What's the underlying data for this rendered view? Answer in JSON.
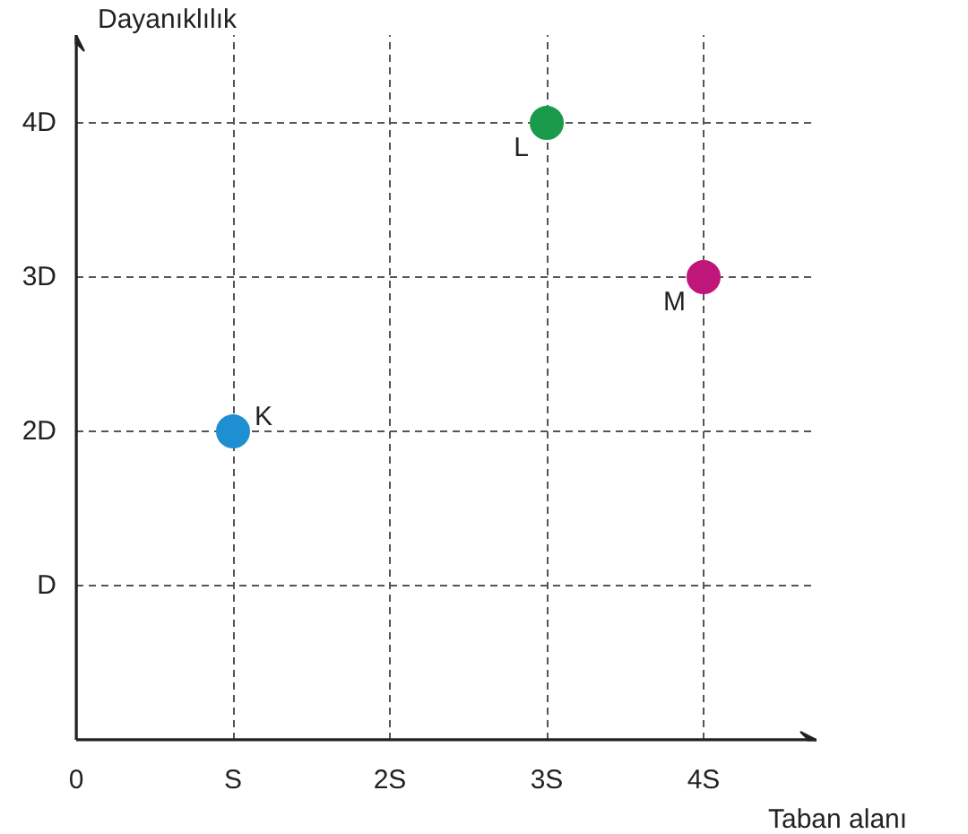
{
  "chart_data": {
    "type": "scatter",
    "xlabel": "Taban alanı",
    "ylabel": "Dayanıklılık",
    "xlim": [
      0,
      4.72
    ],
    "ylim": [
      0,
      4.57
    ],
    "xticks": [
      {
        "value": 0,
        "label": "0"
      },
      {
        "value": 1,
        "label": "S"
      },
      {
        "value": 2,
        "label": "2S"
      },
      {
        "value": 3,
        "label": "3S"
      },
      {
        "value": 4,
        "label": "4S"
      }
    ],
    "yticks": [
      {
        "value": 1,
        "label": "D"
      },
      {
        "value": 2,
        "label": "2D"
      },
      {
        "value": 3,
        "label": "3D"
      },
      {
        "value": 4,
        "label": "4D"
      }
    ],
    "grid": true,
    "line_style": "dashed",
    "marker": "circle",
    "series": [
      {
        "name": "K",
        "color": "#1e8fd0",
        "x": [
          1
        ],
        "values": [
          2
        ]
      },
      {
        "name": "L",
        "color": "#1a9a4a",
        "x": [
          3
        ],
        "values": [
          4
        ]
      },
      {
        "name": "M",
        "color": "#c0167a",
        "x": [
          4
        ],
        "values": [
          3
        ]
      }
    ]
  }
}
